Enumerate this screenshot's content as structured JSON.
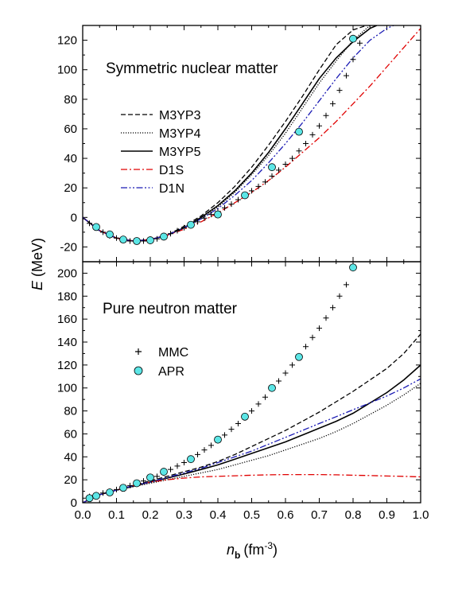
{
  "chart_data": [
    {
      "type": "line",
      "panel": "top",
      "annotation": "Symmetric nuclear matter",
      "xlim": [
        0.0,
        1.0
      ],
      "ylim": [
        -30,
        130
      ],
      "yticks": [
        -20,
        0,
        20,
        40,
        60,
        80,
        100,
        120
      ],
      "series": [
        {
          "name": "M3YP3",
          "style": "dashed",
          "color": "#000000",
          "x": [
            0.0,
            0.05,
            0.1,
            0.15,
            0.2,
            0.25,
            0.3,
            0.35,
            0.4,
            0.45,
            0.5,
            0.55,
            0.6,
            0.65,
            0.7,
            0.75,
            0.8,
            0.84
          ],
          "y": [
            0,
            -9,
            -14,
            -16,
            -15,
            -12,
            -6,
            1,
            10,
            21,
            34,
            49,
            65,
            82,
            100,
            117,
            127,
            130
          ]
        },
        {
          "name": "M3YP4",
          "style": "dotted",
          "color": "#000000",
          "x": [
            0.0,
            0.05,
            0.1,
            0.15,
            0.2,
            0.25,
            0.3,
            0.35,
            0.4,
            0.45,
            0.5,
            0.55,
            0.6,
            0.65,
            0.7,
            0.75,
            0.8,
            0.85
          ],
          "y": [
            0,
            -9,
            -14,
            -16,
            -15,
            -12,
            -7,
            -1,
            7,
            17,
            29,
            42,
            57,
            74,
            91,
            106,
            120,
            130
          ]
        },
        {
          "name": "M3YP5",
          "style": "solid",
          "color": "#000000",
          "x": [
            0.0,
            0.05,
            0.1,
            0.15,
            0.2,
            0.25,
            0.3,
            0.35,
            0.4,
            0.45,
            0.5,
            0.55,
            0.6,
            0.65,
            0.7,
            0.75,
            0.8,
            0.85,
            0.87
          ],
          "y": [
            0,
            -9,
            -14,
            -16,
            -15,
            -12,
            -7,
            0,
            8,
            18,
            30,
            44,
            60,
            77,
            94,
            108,
            119,
            128,
            130
          ]
        },
        {
          "name": "D1S",
          "style": "dashdot",
          "color": "#e00000",
          "x": [
            0.0,
            0.05,
            0.1,
            0.15,
            0.2,
            0.25,
            0.3,
            0.35,
            0.4,
            0.45,
            0.5,
            0.55,
            0.6,
            0.65,
            0.7,
            0.75,
            0.8,
            0.85,
            0.9,
            0.95,
            1.0
          ],
          "y": [
            0,
            -9,
            -14,
            -16,
            -15,
            -12,
            -8,
            -3,
            3,
            10,
            17,
            25,
            34,
            44,
            54,
            65,
            77,
            89,
            102,
            115,
            128
          ]
        },
        {
          "name": "D1N",
          "style": "dashdotdot",
          "color": "#1a1ab4",
          "x": [
            0.0,
            0.05,
            0.1,
            0.15,
            0.2,
            0.25,
            0.3,
            0.35,
            0.4,
            0.45,
            0.5,
            0.55,
            0.6,
            0.65,
            0.7,
            0.75,
            0.8,
            0.85,
            0.9,
            0.92
          ],
          "y": [
            0,
            -9,
            -14,
            -16,
            -15,
            -12,
            -7,
            -1,
            6,
            15,
            25,
            37,
            50,
            64,
            79,
            94,
            108,
            120,
            128,
            130
          ]
        }
      ],
      "markers": [
        {
          "name": "MMC",
          "symbol": "plus",
          "x": [
            0.0,
            0.02,
            0.04,
            0.06,
            0.08,
            0.1,
            0.12,
            0.14,
            0.16,
            0.18,
            0.2,
            0.22,
            0.24,
            0.26,
            0.28,
            0.3,
            0.32,
            0.34,
            0.36,
            0.38,
            0.4,
            0.42,
            0.44,
            0.46,
            0.48,
            0.5,
            0.52,
            0.54,
            0.56,
            0.58,
            0.6,
            0.62,
            0.64,
            0.66,
            0.68,
            0.7,
            0.72,
            0.74,
            0.76,
            0.78,
            0.8,
            0.82
          ],
          "y": [
            -1,
            -4,
            -7,
            -10,
            -12.5,
            -14,
            -15.5,
            -16,
            -16,
            -16,
            -15.5,
            -14.5,
            -13,
            -11,
            -9,
            -7,
            -5,
            -3,
            -0.5,
            2,
            4,
            6.5,
            9,
            12,
            15,
            18,
            21,
            24,
            28,
            32,
            36,
            40,
            45,
            50,
            56,
            62,
            69,
            77,
            86,
            96,
            107,
            118
          ]
        },
        {
          "name": "APR",
          "symbol": "circle",
          "color": "#5ce6e6",
          "x": [
            0.04,
            0.08,
            0.12,
            0.16,
            0.2,
            0.24,
            0.32,
            0.4,
            0.48,
            0.56,
            0.64,
            0.8
          ],
          "y": [
            -6.5,
            -11.5,
            -15,
            -16,
            -15.5,
            -13,
            -5,
            2,
            15,
            34,
            58,
            121
          ]
        }
      ]
    },
    {
      "type": "line",
      "panel": "bottom",
      "annotation": "Pure neutron matter",
      "xlim": [
        0.0,
        1.0
      ],
      "ylim": [
        0,
        210
      ],
      "yticks": [
        0,
        20,
        40,
        60,
        80,
        100,
        120,
        140,
        160,
        180,
        200
      ],
      "series": [
        {
          "name": "M3YP3",
          "style": "dashed",
          "color": "#000000",
          "x": [
            0.0,
            0.05,
            0.1,
            0.15,
            0.2,
            0.25,
            0.3,
            0.35,
            0.4,
            0.45,
            0.5,
            0.55,
            0.6,
            0.65,
            0.7,
            0.75,
            0.8,
            0.85,
            0.9,
            0.95,
            1.0
          ],
          "y": [
            0,
            7,
            11,
            15,
            19,
            23,
            27,
            31,
            36,
            42,
            49,
            56,
            63,
            71,
            79,
            88,
            97,
            107,
            117,
            130,
            147
          ]
        },
        {
          "name": "M3YP4",
          "style": "dotted",
          "color": "#000000",
          "x": [
            0.0,
            0.05,
            0.1,
            0.15,
            0.2,
            0.25,
            0.3,
            0.35,
            0.4,
            0.45,
            0.5,
            0.55,
            0.6,
            0.65,
            0.7,
            0.75,
            0.8,
            0.85,
            0.9,
            0.95,
            1.0
          ],
          "y": [
            0,
            7,
            11,
            14,
            17,
            20,
            23,
            26,
            29,
            33,
            37,
            41,
            46,
            51,
            56,
            62,
            69,
            77,
            85,
            94,
            104
          ]
        },
        {
          "name": "M3YP5",
          "style": "solid",
          "color": "#000000",
          "x": [
            0.0,
            0.05,
            0.1,
            0.15,
            0.2,
            0.25,
            0.3,
            0.35,
            0.4,
            0.45,
            0.5,
            0.55,
            0.6,
            0.65,
            0.7,
            0.75,
            0.8,
            0.85,
            0.9,
            0.95,
            1.0
          ],
          "y": [
            0,
            7,
            11,
            14.5,
            18,
            21.5,
            25,
            29,
            33,
            38,
            43,
            48,
            53,
            59,
            65,
            71,
            78,
            87,
            96,
            107,
            120
          ]
        },
        {
          "name": "D1S",
          "style": "dashdot",
          "color": "#e00000",
          "x": [
            0.0,
            0.05,
            0.1,
            0.15,
            0.2,
            0.25,
            0.3,
            0.35,
            0.4,
            0.45,
            0.5,
            0.55,
            0.6,
            0.65,
            0.7,
            0.75,
            0.8,
            0.85,
            0.9,
            0.95,
            1.0
          ],
          "y": [
            0,
            7,
            11,
            15,
            18,
            20,
            21.5,
            22.5,
            23,
            23.5,
            24,
            24.3,
            24.5,
            24.5,
            24.5,
            24.3,
            24,
            23.7,
            23.3,
            23,
            22.5
          ]
        },
        {
          "name": "D1N",
          "style": "dashdotdot",
          "color": "#1a1ab4",
          "x": [
            0.0,
            0.05,
            0.1,
            0.15,
            0.2,
            0.25,
            0.3,
            0.35,
            0.4,
            0.45,
            0.5,
            0.55,
            0.6,
            0.65,
            0.7,
            0.75,
            0.8,
            0.85,
            0.9,
            0.95,
            1.0
          ],
          "y": [
            0,
            7,
            11,
            15,
            18,
            22,
            26,
            30,
            35,
            40,
            45,
            51,
            57,
            63,
            69,
            75,
            81,
            87,
            93,
            100,
            108
          ]
        }
      ],
      "markers": [
        {
          "name": "MMC",
          "symbol": "plus",
          "x": [
            0.0,
            0.02,
            0.04,
            0.06,
            0.08,
            0.1,
            0.12,
            0.14,
            0.16,
            0.18,
            0.2,
            0.22,
            0.24,
            0.26,
            0.28,
            0.3,
            0.32,
            0.34,
            0.36,
            0.38,
            0.4,
            0.42,
            0.44,
            0.46,
            0.48,
            0.5,
            0.52,
            0.54,
            0.56,
            0.58,
            0.6,
            0.62,
            0.64,
            0.66,
            0.68,
            0.7,
            0.72,
            0.74,
            0.76,
            0.78,
            0.8
          ],
          "y": [
            4,
            5.5,
            7,
            8.5,
            10,
            11.5,
            13,
            15,
            17,
            19,
            21,
            23,
            26,
            29,
            32,
            35,
            38,
            42,
            46,
            50,
            54,
            59,
            64,
            69,
            74,
            80,
            86,
            92,
            99,
            106,
            113,
            120,
            128,
            136,
            144,
            152,
            161,
            170,
            180,
            190,
            204
          ]
        },
        {
          "name": "APR",
          "symbol": "circle",
          "color": "#5ce6e6",
          "x": [
            0.02,
            0.04,
            0.08,
            0.12,
            0.16,
            0.2,
            0.24,
            0.32,
            0.4,
            0.48,
            0.56,
            0.64,
            0.8
          ],
          "y": [
            4,
            6,
            9,
            13,
            17,
            22,
            27,
            38,
            55,
            75,
            100,
            127,
            205
          ]
        }
      ]
    }
  ],
  "legend_top": [
    "M3YP3",
    "M3YP4",
    "M3YP5",
    "D1S",
    "D1N"
  ],
  "legend_bottom": [
    "MMC",
    "APR"
  ],
  "xticks": [
    "0.0",
    "0.1",
    "0.2",
    "0.3",
    "0.4",
    "0.5",
    "0.6",
    "0.7",
    "0.8",
    "0.9",
    "1.0"
  ],
  "xlabel": {
    "base": "n",
    "sub": "b",
    "units": "(fm",
    "exp": "-3",
    "close": ")"
  },
  "ylabel": {
    "base": "E",
    "units": "(MeV)"
  }
}
